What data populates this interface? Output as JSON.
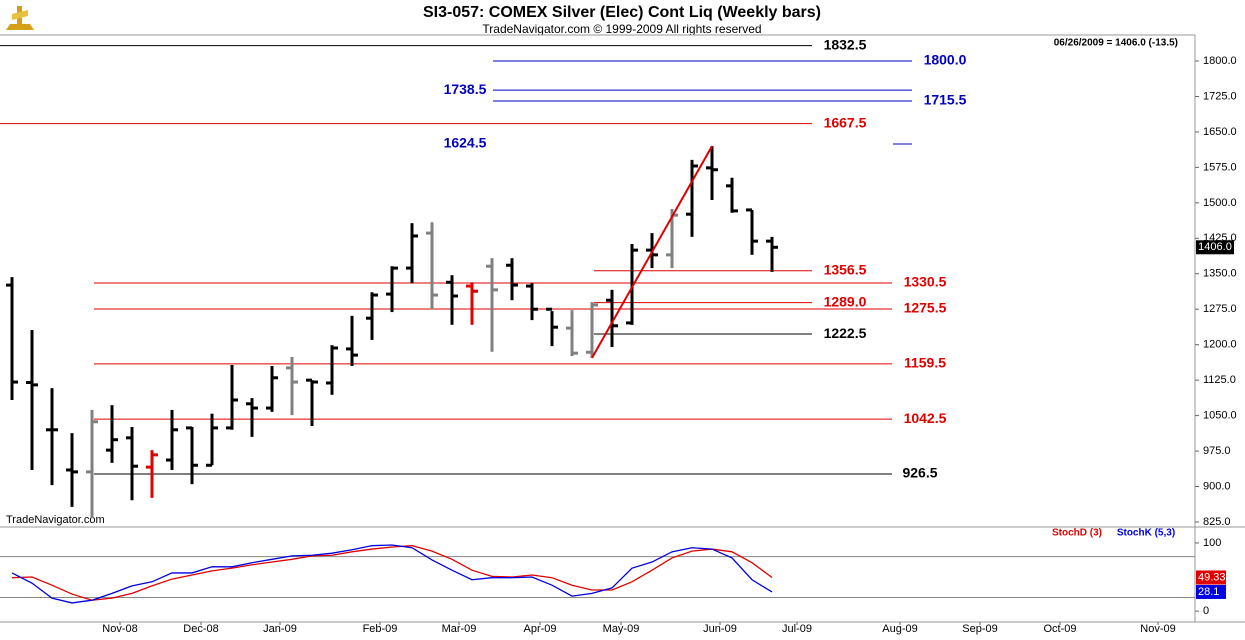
{
  "chart_data": [
    {
      "type": "ohlc",
      "title": "SI3-057:  COMEX Silver (Elec) Cont Liq  (Weekly bars)",
      "subtitle": "TradeNavigator.com © 1999-2009 All rights reserved",
      "watermark": "TradeNavigator.com",
      "quote": "06/26/2009 = 1406.0 (-13.5)",
      "last": {
        "value": 1406,
        "label": "1406.0"
      },
      "x": [
        0,
        1,
        2,
        3,
        4,
        5,
        6,
        7,
        8,
        9,
        10,
        11,
        12,
        13,
        14,
        15,
        16,
        17,
        18,
        19,
        20,
        21,
        22,
        23,
        24,
        25,
        26,
        27,
        28,
        29,
        30,
        31,
        32,
        33,
        34,
        35,
        36,
        37,
        38
      ],
      "xlim": [
        -0.6,
        59.15
      ],
      "open": [
        1326,
        1120,
        1020,
        935,
        931,
        977,
        1003,
        941,
        956,
        1024,
        945,
        1024,
        1075,
        1066,
        1151,
        1125,
        1119,
        1191,
        1256,
        1307,
        1362,
        1436,
        1332,
        1324,
        1366,
        1368,
        1324,
        1275,
        1235,
        1184,
        1294,
        1246,
        1400,
        1390,
        1476,
        1574,
        1536,
        1485,
        1419
      ],
      "high": [
        1343,
        1231,
        1108,
        1013,
        1062,
        1072,
        1026,
        977,
        1062,
        1026,
        1054,
        1157,
        1087,
        1155,
        1174,
        1125,
        1199,
        1261,
        1311,
        1366,
        1457,
        1459,
        1347,
        1332,
        1383,
        1383,
        1330,
        1271,
        1273,
        1290,
        1316,
        1413,
        1436,
        1487,
        1591,
        1620,
        1553,
        1485,
        1428
      ],
      "low": [
        1083,
        935,
        903,
        857,
        833,
        950,
        871,
        876,
        935,
        905,
        945,
        1020,
        1005,
        1058,
        1051,
        1028,
        1094,
        1155,
        1210,
        1269,
        1330,
        1275,
        1242,
        1242,
        1185,
        1294,
        1252,
        1197,
        1176,
        1172,
        1195,
        1242,
        1362,
        1362,
        1428,
        1506,
        1479,
        1390,
        1354
      ],
      "close": [
        1121,
        1115,
        1020,
        931,
        1037,
        999,
        943,
        967,
        1020,
        945,
        1024,
        1083,
        1066,
        1130,
        1121,
        1121,
        1193,
        1178,
        1305,
        1362,
        1430,
        1305,
        1303,
        1313,
        1316,
        1326,
        1275,
        1237,
        1182,
        1284,
        1240,
        1400,
        1390,
        1474,
        1578,
        1570,
        1483,
        1419,
        1406
      ],
      "colors": [
        "#000",
        "#000",
        "#000",
        "#000",
        "#808080",
        "#000",
        "#000",
        "#e00000",
        "#000",
        "#000",
        "#000",
        "#000",
        "#000",
        "#000",
        "#808080",
        "#000",
        "#000",
        "#000",
        "#000",
        "#000",
        "#000",
        "#808080",
        "#000",
        "#e00000",
        "#808080",
        "#000",
        "#000",
        "#000",
        "#808080",
        "#808080",
        "#000",
        "#000",
        "#000",
        "#808080",
        "#000",
        "#000",
        "#000",
        "#000",
        "#000"
      ],
      "ylim": [
        814.4,
        1855
      ],
      "yticks": [
        {
          "value": 825,
          "label": "825.0"
        },
        {
          "value": 900,
          "label": "900.0"
        },
        {
          "value": 975,
          "label": "975.0"
        },
        {
          "value": 1050,
          "label": "1050.0"
        },
        {
          "value": 1125,
          "label": "1125.0"
        },
        {
          "value": 1200,
          "label": "1200.0"
        },
        {
          "value": 1275,
          "label": "1275.0"
        },
        {
          "value": 1350,
          "label": "1350.0"
        },
        {
          "value": 1425,
          "label": "1425.0"
        },
        {
          "value": 1500,
          "label": "1500.0"
        },
        {
          "value": 1575,
          "label": "1575.0"
        },
        {
          "value": 1650,
          "label": "1650.0"
        },
        {
          "value": 1725,
          "label": "1725.0"
        },
        {
          "value": 1800,
          "label": "1800.0"
        }
      ],
      "levels": [
        {
          "value": 1832.5,
          "label": "1832.5",
          "color": "#000000"
        },
        {
          "value": 1800,
          "label": "1800.0",
          "color": "#0000c0"
        },
        {
          "value": 1738.5,
          "label": "1738.5",
          "color": "#0000c0"
        },
        {
          "value": 1715.5,
          "label": "1715.5",
          "color": "#0000c0"
        },
        {
          "value": 1667.5,
          "label": "1667.5",
          "color": "#e00000"
        },
        {
          "value": 1624.5,
          "label": "1624.5",
          "color": "#0000c0"
        },
        {
          "value": 1356.5,
          "label": "1356.5",
          "color": "#e00000"
        },
        {
          "value": 1330.5,
          "label": "1330.5",
          "color": "#e00000"
        },
        {
          "value": 1289,
          "label": "1289.0",
          "color": "#e00000"
        },
        {
          "value": 1275.5,
          "label": "1275.5",
          "color": "#e00000"
        },
        {
          "value": 1222.5,
          "label": "1222.5",
          "color": "#000000"
        },
        {
          "value": 1159.5,
          "label": "1159.5",
          "color": "#e00000"
        },
        {
          "value": 1042.5,
          "label": "1042.5",
          "color": "#e00000"
        },
        {
          "value": 926.5,
          "label": "926.5",
          "color": "#000000"
        }
      ],
      "trendline": {
        "x": [
          29,
          35
        ],
        "y": [
          1172,
          1620
        ],
        "color": "#e00000"
      }
    },
    {
      "type": "line",
      "x": [
        0,
        1,
        2,
        3,
        4,
        5,
        6,
        7,
        8,
        9,
        10,
        11,
        12,
        13,
        14,
        15,
        16,
        17,
        18,
        19,
        20,
        21,
        22,
        23,
        24,
        25,
        26,
        27,
        28,
        29,
        30,
        31,
        32,
        33,
        34,
        35,
        36,
        37,
        38
      ],
      "xlim": [
        -0.6,
        59.15
      ],
      "xticks": [
        {
          "value": 5.4,
          "label": "Nov-08"
        },
        {
          "value": 9.45,
          "label": "Dec-08"
        },
        {
          "value": 13.4,
          "label": "Jan-09"
        },
        {
          "value": 18.4,
          "label": "Feb-09"
        },
        {
          "value": 22.35,
          "label": "Mar-09"
        },
        {
          "value": 26.4,
          "label": "Apr-09"
        },
        {
          "value": 30.45,
          "label": "May-09"
        },
        {
          "value": 35.4,
          "label": "Jun-09"
        },
        {
          "value": 39.25,
          "label": "Jul-09"
        },
        {
          "value": 44.4,
          "label": "Aug-09"
        },
        {
          "value": 48.4,
          "label": "Sep-09"
        },
        {
          "value": 52.4,
          "label": "Oct-09"
        },
        {
          "value": 57.3,
          "label": "Nov-09"
        }
      ],
      "ylim": [
        -16,
        119
      ],
      "yticks": [
        0,
        100
      ],
      "hlines": [
        20,
        80
      ],
      "series": [
        {
          "name": "StochD (3)",
          "color": "#e00000",
          "values": [
            49,
            50,
            38,
            25,
            16,
            19,
            26,
            37,
            47,
            53,
            59,
            63,
            68,
            72,
            76,
            81,
            82,
            87,
            91,
            94,
            96,
            88,
            76,
            60,
            51,
            50,
            53,
            49,
            38,
            31,
            31,
            43,
            60,
            78,
            88,
            91,
            87,
            71,
            49.33
          ]
        },
        {
          "name": "StochK (5,3)",
          "color": "#0000e0",
          "values": [
            56,
            41,
            19,
            12,
            16,
            26,
            37,
            43,
            56,
            56,
            65,
            65,
            71,
            76,
            81,
            82,
            85,
            90,
            96,
            97,
            93,
            75,
            60,
            46,
            49,
            49,
            50,
            38,
            22,
            26,
            34,
            63,
            72,
            87,
            93,
            91,
            78,
            46,
            28.1
          ]
        }
      ]
    }
  ]
}
